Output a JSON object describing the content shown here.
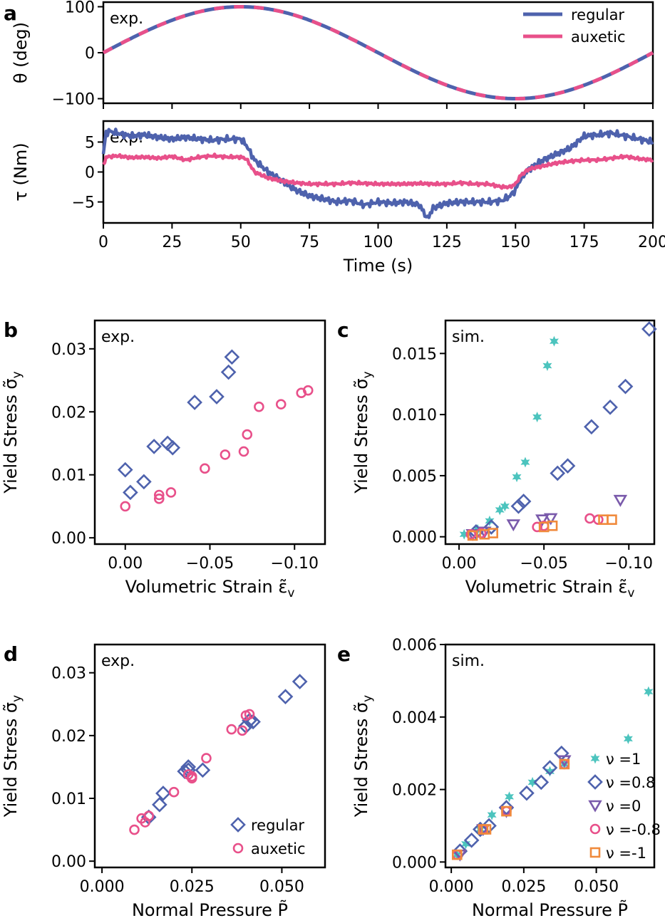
{
  "colors": {
    "regular": "#4e62ad",
    "auxetic": "#e8508a",
    "nu1": "#4cc4be",
    "nu08": "#4e62ad",
    "nu0": "#7a5aab",
    "num08": "#e8508a",
    "num1": "#f08a3c"
  },
  "chart_data": [
    {
      "panel": "a",
      "type": "line",
      "tag": "exp.",
      "xlim": [
        0,
        200
      ],
      "ylim": [
        -110,
        110
      ],
      "yticks": [
        "100",
        "0",
        "−100"
      ],
      "ytick_values": [
        100,
        0,
        -100
      ],
      "ylabel": "θ (deg)",
      "legend_position": "top-right",
      "series": [
        {
          "name": "regular",
          "function": "100*sin(2*pi*t/200)"
        },
        {
          "name": "auxetic",
          "function": "100*sin(2*pi*t/200)"
        }
      ]
    },
    {
      "panel": "a2",
      "type": "line",
      "tag": "exp.",
      "xlim": [
        0,
        200
      ],
      "ylim": [
        -8.5,
        8.5
      ],
      "xticks": [
        "0",
        "25",
        "50",
        "75",
        "100",
        "125",
        "150",
        "175",
        "200"
      ],
      "xtick_values": [
        0,
        25,
        50,
        75,
        100,
        125,
        150,
        175,
        200
      ],
      "yticks": [
        "5",
        "0",
        "−5"
      ],
      "ytick_values": [
        5,
        0,
        -5
      ],
      "xlabel": "Time (s)",
      "ylabel": "τ (Nm)",
      "series": [
        {
          "name": "regular",
          "x": [
            0,
            1,
            2,
            5,
            10,
            15,
            20,
            25,
            30,
            35,
            40,
            45,
            50,
            52,
            55,
            60,
            65,
            70,
            75,
            80,
            85,
            90,
            95,
            100,
            105,
            110,
            115,
            118,
            120,
            125,
            130,
            135,
            140,
            145,
            148,
            150,
            152,
            155,
            160,
            165,
            170,
            175,
            180,
            185,
            190,
            195,
            200
          ],
          "y": [
            3,
            6.5,
            6.8,
            6.5,
            6,
            6.2,
            5.8,
            5.5,
            5.8,
            5.5,
            5.3,
            5.5,
            5.5,
            4.5,
            2,
            0,
            -1.5,
            -3,
            -4,
            -4.5,
            -5,
            -4.8,
            -5.5,
            -5,
            -5.2,
            -5,
            -5.5,
            -7.8,
            -6,
            -5.2,
            -5,
            -5,
            -5,
            -4.8,
            -4,
            -3,
            -1,
            0.5,
            2,
            3,
            4,
            6,
            6.2,
            6.5,
            6,
            5.5,
            5
          ]
        },
        {
          "name": "auxetic",
          "x": [
            0,
            1,
            5,
            10,
            15,
            20,
            25,
            30,
            35,
            40,
            45,
            50,
            52,
            55,
            60,
            65,
            70,
            75,
            80,
            85,
            90,
            95,
            100,
            105,
            110,
            115,
            120,
            125,
            130,
            135,
            140,
            145,
            148,
            150,
            152,
            155,
            160,
            165,
            170,
            175,
            180,
            185,
            190,
            195,
            200
          ],
          "y": [
            1,
            2.5,
            2.7,
            2.4,
            2.5,
            2.3,
            2.6,
            2,
            2.5,
            2.7,
            2.5,
            2.5,
            2.2,
            0,
            -1,
            -1.5,
            -1.8,
            -2,
            -2,
            -2,
            -1.8,
            -1.9,
            -2,
            -2,
            -2,
            -1.9,
            -2,
            -2,
            -1.8,
            -2,
            -2,
            -2.5,
            -2.5,
            -2,
            -0.5,
            0.5,
            1,
            1.5,
            1.8,
            2,
            2,
            2.3,
            2.6,
            2.2,
            2
          ]
        }
      ]
    },
    {
      "panel": "b",
      "type": "scatter",
      "tag": "exp.",
      "xlim": [
        0.018,
        -0.118
      ],
      "ylim": [
        -0.001,
        0.0345
      ],
      "xticks": [
        "0.00",
        "−0.05",
        "−0.10"
      ],
      "xtick_values": [
        0,
        -0.05,
        -0.1
      ],
      "yticks": [
        "0.00",
        "0.01",
        "0.02",
        "0.03"
      ],
      "ytick_values": [
        0,
        0.01,
        0.02,
        0.03
      ],
      "xlabel": "Volumetric Strain ε̃",
      "xlabel_sub": "v",
      "ylabel": "Yield Stress σ̃",
      "ylabel_sub": "y",
      "series": [
        {
          "name": "regular",
          "marker": "diamond",
          "x": [
            0,
            -0.003,
            -0.011,
            -0.017,
            -0.025,
            -0.028,
            -0.041,
            -0.054,
            -0.061,
            -0.063
          ],
          "y": [
            0.0108,
            0.0072,
            0.0089,
            0.0145,
            0.015,
            0.0143,
            0.0215,
            0.0224,
            0.0263,
            0.0287
          ]
        },
        {
          "name": "auxetic",
          "marker": "circle",
          "x": [
            0,
            -0.02,
            -0.02,
            -0.027,
            -0.047,
            -0.059,
            -0.07,
            -0.072,
            -0.079,
            -0.092,
            -0.104,
            -0.108
          ],
          "y": [
            0.005,
            0.0068,
            0.0062,
            0.0072,
            0.011,
            0.0132,
            0.0137,
            0.0164,
            0.0208,
            0.0212,
            0.023,
            0.0234
          ]
        }
      ]
    },
    {
      "panel": "c",
      "type": "scatter",
      "tag": "sim.",
      "xlim": [
        0.008,
        -0.115
      ],
      "ylim": [
        -0.0006,
        0.0177
      ],
      "xticks": [
        "0.00",
        "−0.05",
        "−0.10"
      ],
      "xtick_values": [
        0,
        -0.05,
        -0.1
      ],
      "yticks": [
        "0.000",
        "0.005",
        "0.010",
        "0.015"
      ],
      "ytick_values": [
        0,
        0.005,
        0.01,
        0.015
      ],
      "xlabel": "Volumetric Strain ε̃",
      "xlabel_sub": "v",
      "ylabel": "Yield Stress σ̃",
      "ylabel_sub": "y",
      "series": [
        {
          "name": "ν =1",
          "marker": "star",
          "x": [
            -0.003,
            -0.011,
            -0.018,
            -0.024,
            -0.027,
            -0.034,
            -0.039,
            -0.046,
            -0.052,
            -0.056
          ],
          "y": [
            0.0002,
            0.0006,
            0.0013,
            0.0022,
            0.0025,
            0.0049,
            0.0061,
            0.0098,
            0.014,
            0.016
          ]
        },
        {
          "name": "ν =0.8",
          "marker": "diamond",
          "x": [
            -0.01,
            -0.019,
            -0.035,
            -0.038,
            -0.058,
            -0.064,
            -0.078,
            -0.089,
            -0.098,
            -0.112
          ],
          "y": [
            0.0004,
            0.0008,
            0.0025,
            0.0029,
            0.0052,
            0.0058,
            0.009,
            0.0106,
            0.0123,
            0.017
          ]
        },
        {
          "name": "ν =0",
          "marker": "triangle-down",
          "x": [
            -0.008,
            -0.015,
            -0.032,
            -0.049,
            -0.054,
            -0.095
          ],
          "y": [
            0.0002,
            0.0004,
            0.001,
            0.0014,
            0.0015,
            0.003
          ]
        },
        {
          "name": "ν =-0.8",
          "marker": "circle",
          "x": [
            -0.007,
            -0.013,
            -0.046,
            -0.05,
            -0.077,
            -0.082
          ],
          "y": [
            0.0002,
            0.0003,
            0.0008,
            0.0009,
            0.0015,
            0.0014
          ]
        },
        {
          "name": "ν =-1",
          "marker": "square",
          "x": [
            -0.008,
            -0.015,
            -0.02,
            -0.05,
            -0.055,
            -0.085,
            -0.09
          ],
          "y": [
            0.0001,
            0.0002,
            0.0003,
            0.0008,
            0.0009,
            0.0014,
            0.0014
          ]
        }
      ]
    },
    {
      "panel": "d",
      "type": "scatter",
      "tag": "exp.",
      "xlim": [
        -0.002,
        0.062
      ],
      "ylim": [
        -0.001,
        0.0345
      ],
      "xticks": [
        "0.000",
        "0.025",
        "0.050"
      ],
      "xtick_values": [
        0,
        0.025,
        0.05
      ],
      "yticks": [
        "0.00",
        "0.01",
        "0.02",
        "0.03"
      ],
      "ytick_values": [
        0,
        0.01,
        0.02,
        0.03
      ],
      "xlabel": "Normal Pressure P̃",
      "ylabel": "Yield Stress σ̃",
      "ylabel_sub": "y",
      "legend_position": "bottom-right",
      "series": [
        {
          "name": "regular",
          "marker": "diamond",
          "x": [
            0.013,
            0.016,
            0.017,
            0.023,
            0.024,
            0.024,
            0.028,
            0.04,
            0.041,
            0.042,
            0.051,
            0.055
          ],
          "y": [
            0.007,
            0.009,
            0.0108,
            0.0143,
            0.015,
            0.0145,
            0.0145,
            0.0215,
            0.0224,
            0.0222,
            0.0262,
            0.0286
          ]
        },
        {
          "name": "auxetic",
          "marker": "circle",
          "x": [
            0.009,
            0.011,
            0.012,
            0.013,
            0.02,
            0.024,
            0.025,
            0.025,
            0.029,
            0.036,
            0.039,
            0.04,
            0.041
          ],
          "y": [
            0.005,
            0.0068,
            0.0062,
            0.0072,
            0.011,
            0.0138,
            0.0132,
            0.0135,
            0.0164,
            0.021,
            0.0208,
            0.0232,
            0.0234
          ]
        }
      ]
    },
    {
      "panel": "e",
      "type": "scatter",
      "tag": "sim.",
      "xlim": [
        -0.002,
        0.07
      ],
      "ylim": [
        -0.00015,
        0.006
      ],
      "xticks": [
        "0.000",
        "0.025",
        "0.050"
      ],
      "xtick_values": [
        0,
        0.025,
        0.05
      ],
      "yticks": [
        "0.000",
        "0.002",
        "0.004",
        "0.006"
      ],
      "ytick_values": [
        0,
        0.002,
        0.004,
        0.006
      ],
      "xlabel": "Normal Pressure P̃",
      "ylabel": "Yield Stress σ̃",
      "ylabel_sub": "y",
      "legend_position": "bottom-right",
      "series": [
        {
          "name": "ν =1",
          "marker": "star",
          "x": [
            0.002,
            0.005,
            0.01,
            0.014,
            0.02,
            0.028,
            0.034,
            0.039,
            0.061,
            0.068
          ],
          "y": [
            0.0002,
            0.0005,
            0.0009,
            0.0013,
            0.0018,
            0.0022,
            0.0025,
            0.0027,
            0.0034,
            0.0047
          ]
        },
        {
          "name": "ν =0.8",
          "marker": "diamond",
          "x": [
            0.003,
            0.007,
            0.01,
            0.013,
            0.019,
            0.026,
            0.031,
            0.034,
            0.038
          ],
          "y": [
            0.0003,
            0.0006,
            0.0009,
            0.001,
            0.0015,
            0.0019,
            0.0022,
            0.0026,
            0.003
          ]
        },
        {
          "name": "ν =0",
          "marker": "triangle-down",
          "x": [
            0.003,
            0.011,
            0.019,
            0.039
          ],
          "y": [
            0.0002,
            0.0009,
            0.0014,
            0.0028
          ]
        },
        {
          "name": "ν =-0.8",
          "marker": "circle",
          "x": [
            0.002,
            0.011,
            0.019,
            0.039
          ],
          "y": [
            0.0002,
            0.0009,
            0.0014,
            0.0027
          ]
        },
        {
          "name": "ν =-1",
          "marker": "square",
          "x": [
            0.002,
            0.011,
            0.012,
            0.019,
            0.039
          ],
          "y": [
            0.0002,
            0.0009,
            0.0009,
            0.0014,
            0.0027
          ]
        }
      ]
    }
  ],
  "panel_labels": [
    "a",
    "b",
    "c",
    "d",
    "e"
  ]
}
